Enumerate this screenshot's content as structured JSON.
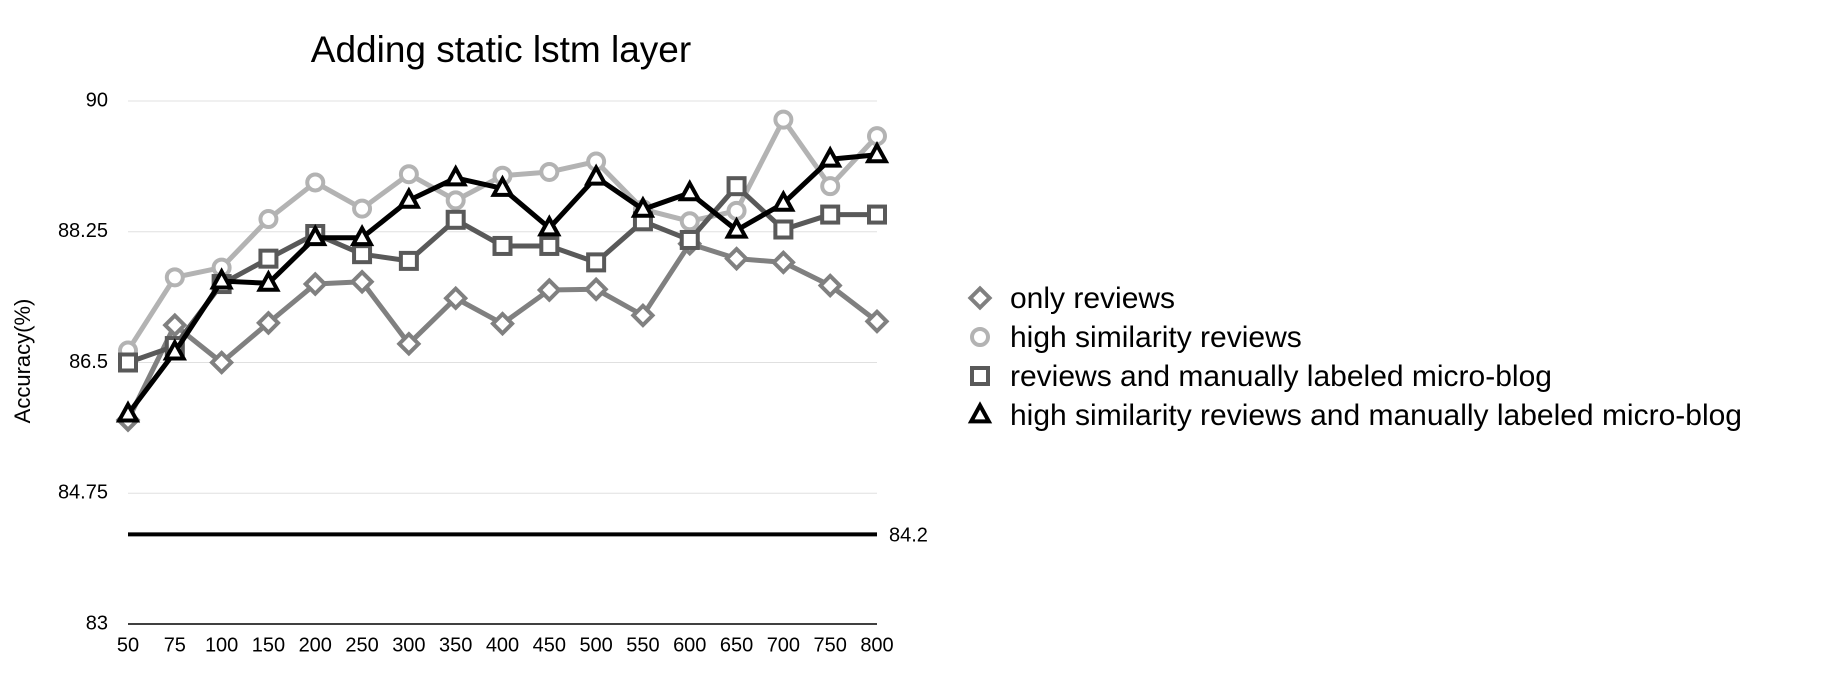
{
  "chart_data": {
    "type": "line",
    "title": "Adding static lstm layer",
    "y_label": "Accuracy(%)",
    "categories": [
      "50",
      "75",
      "100",
      "150",
      "200",
      "250",
      "300",
      "350",
      "400",
      "450",
      "500",
      "550",
      "600",
      "650",
      "700",
      "750",
      "800"
    ],
    "ylim": [
      83,
      90
    ],
    "yticks": [
      83,
      84.75,
      86.5,
      88.25,
      90
    ],
    "grid": true,
    "series": [
      {
        "name": "only reviews",
        "color": "#808080",
        "marker": "diamond",
        "values": [
          85.73,
          87.0,
          86.5,
          87.03,
          87.55,
          87.58,
          86.75,
          87.36,
          87.02,
          87.47,
          87.48,
          87.13,
          88.09,
          87.89,
          87.84,
          87.53,
          87.05
        ]
      },
      {
        "name": "high similarity reviews",
        "color": "#b3b3b3",
        "marker": "circle",
        "values": [
          86.66,
          87.64,
          87.77,
          88.42,
          88.91,
          88.56,
          89.02,
          88.67,
          89.0,
          89.05,
          89.19,
          88.55,
          88.39,
          88.53,
          89.75,
          88.86,
          89.53
        ]
      },
      {
        "name": "reviews and manually labeled micro-blog",
        "color": "#595959",
        "marker": "square",
        "values": [
          86.5,
          86.72,
          87.55,
          87.89,
          88.22,
          87.95,
          87.86,
          88.41,
          88.06,
          88.06,
          87.84,
          88.39,
          88.14,
          88.86,
          88.28,
          88.48,
          88.48
        ]
      },
      {
        "name": "high similarity reviews and manually labeled micro-blog",
        "color": "#000000",
        "marker": "triangle",
        "values": [
          85.81,
          86.64,
          87.59,
          87.56,
          88.17,
          88.17,
          88.67,
          88.97,
          88.83,
          88.3,
          88.98,
          88.55,
          88.77,
          88.27,
          88.63,
          89.22,
          89.28
        ]
      }
    ],
    "baseline": {
      "value": 84.2,
      "color": "#000000"
    }
  }
}
